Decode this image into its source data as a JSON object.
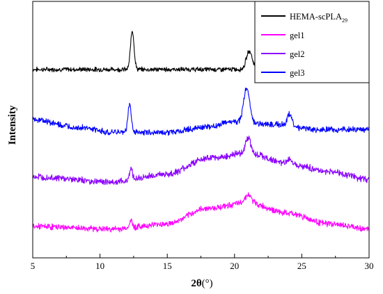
{
  "chart_data": {
    "type": "line",
    "xlabel_main": "2θ",
    "xlabel_unit": "(°)",
    "ylabel": "Intensity",
    "xlim": [
      5,
      30
    ],
    "x_ticks": [
      5,
      10,
      15,
      20,
      25,
      30
    ],
    "y_ticks_shown": false,
    "legend_position": "top-right",
    "grid": false,
    "series": [
      {
        "name": "HEMA-scPLA",
        "name_subscript": "29",
        "color": "#000000",
        "offset": 3.0,
        "noise": 0.035,
        "baseline": [
          [
            5,
            0.0
          ],
          [
            30,
            0.0
          ]
        ],
        "peaks": [
          [
            12.4,
            0.75,
            0.13
          ],
          [
            21.1,
            0.35,
            0.22
          ],
          [
            24.4,
            0.16,
            0.22
          ]
        ]
      },
      {
        "name": "gel1",
        "color": "#ff00ff",
        "offset": 0.0,
        "noise": 0.045,
        "baseline": [
          [
            5,
            0.0
          ],
          [
            11,
            -0.05
          ],
          [
            15,
            0.05
          ],
          [
            18,
            0.35
          ],
          [
            21,
            0.45
          ],
          [
            24,
            0.25
          ],
          [
            27,
            0.05
          ],
          [
            30,
            -0.05
          ]
        ],
        "peaks": [
          [
            12.3,
            0.13,
            0.12
          ],
          [
            21.0,
            0.15,
            0.25
          ]
        ]
      },
      {
        "name": "gel2",
        "color": "#8b00ff",
        "offset": 0.95,
        "noise": 0.05,
        "baseline": [
          [
            5,
            0.0
          ],
          [
            11,
            -0.1
          ],
          [
            15,
            0.05
          ],
          [
            18,
            0.35
          ],
          [
            21,
            0.45
          ],
          [
            24,
            0.25
          ],
          [
            27,
            0.1
          ],
          [
            30,
            -0.05
          ]
        ],
        "peaks": [
          [
            12.3,
            0.22,
            0.12
          ],
          [
            21.0,
            0.3,
            0.2
          ],
          [
            24.1,
            0.08,
            0.2
          ]
        ]
      },
      {
        "name": "gel3",
        "color": "#0000ff",
        "offset": 1.95,
        "noise": 0.045,
        "baseline": [
          [
            5,
            0.1
          ],
          [
            8,
            -0.05
          ],
          [
            11,
            -0.15
          ],
          [
            15,
            -0.15
          ],
          [
            18,
            -0.05
          ],
          [
            20,
            0.05
          ],
          [
            23,
            0.0
          ],
          [
            26,
            -0.1
          ],
          [
            30,
            -0.1
          ]
        ],
        "peaks": [
          [
            12.2,
            0.55,
            0.12
          ],
          [
            20.9,
            0.65,
            0.22
          ],
          [
            24.1,
            0.22,
            0.18
          ]
        ]
      }
    ],
    "legend_order": [
      "HEMA-scPLA",
      "gel1",
      "gel2",
      "gel3"
    ]
  }
}
